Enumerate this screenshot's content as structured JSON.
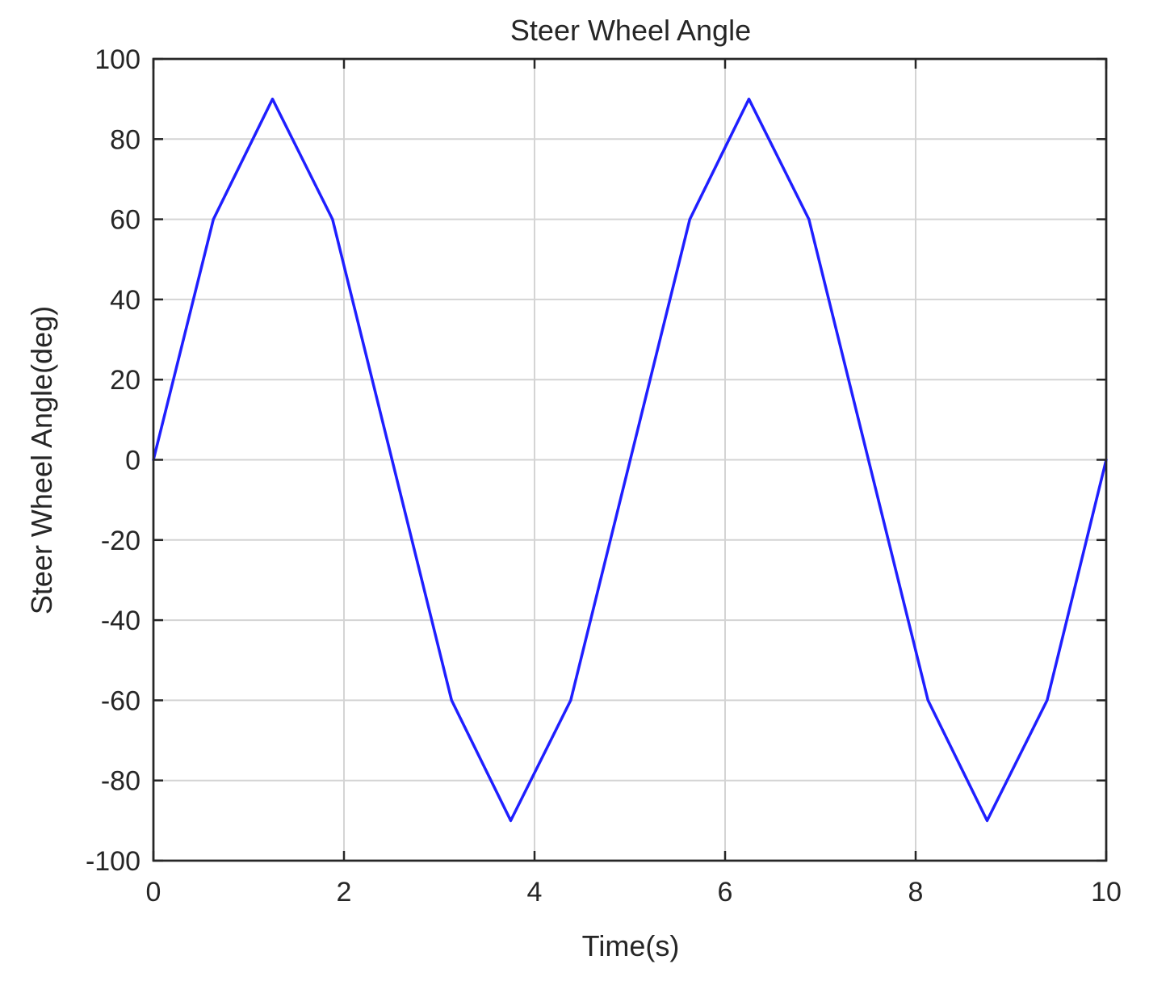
{
  "chart_data": {
    "type": "line",
    "title": "Steer Wheel Angle",
    "xlabel": "Time(s)",
    "ylabel": "Steer Wheel Angle(deg)",
    "xlim": [
      0,
      10
    ],
    "ylim": [
      -100,
      100
    ],
    "x_ticks": [
      0,
      2,
      4,
      6,
      8,
      10
    ],
    "x_tick_labels": [
      "0",
      "2",
      "4",
      "6",
      "8",
      "10"
    ],
    "y_ticks": [
      100,
      80,
      60,
      40,
      20,
      0,
      -20,
      -40,
      -60,
      -80,
      -100
    ],
    "y_tick_labels": [
      "100",
      "80",
      "60",
      "40",
      "20",
      "0",
      "-20",
      "-40",
      "-60",
      "-80",
      "-100"
    ],
    "grid": true,
    "series": [
      {
        "color": "#1f1fff",
        "x": [
          0,
          0.63,
          1.25,
          1.88,
          3.13,
          3.75,
          4.38,
          5.63,
          6.25,
          6.88,
          8.13,
          8.75,
          9.38,
          10
        ],
        "y": [
          0,
          60,
          90,
          60,
          -60,
          -90,
          -60,
          60,
          90,
          60,
          -60,
          -90,
          -60,
          0
        ]
      }
    ]
  }
}
